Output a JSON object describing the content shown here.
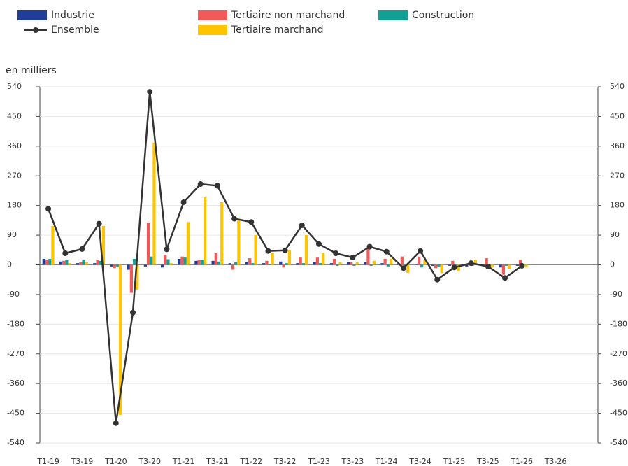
{
  "chart_data": {
    "type": "bar",
    "y_axis_label": "en milliers",
    "categories": [
      "T1-19",
      null,
      "T3-19",
      null,
      "T1-20",
      null,
      "T3-20",
      null,
      "T1-21",
      null,
      "T3-21",
      null,
      "T1-22",
      null,
      "T3-22",
      null,
      "T1-23",
      null,
      "T3-23",
      null,
      "T1-24",
      null,
      "T3-24",
      null,
      "T1-25",
      null,
      "T3-25",
      null,
      "T1-26",
      null,
      "T3-26",
      null,
      null
    ],
    "series": [
      {
        "name": "Industrie",
        "color": "#1f3d99",
        "type": "bar",
        "values": [
          18,
          10,
          5,
          5,
          -5,
          -15,
          -5,
          -8,
          18,
          12,
          12,
          5,
          8,
          5,
          10,
          5,
          8,
          5,
          8,
          8,
          5,
          3,
          3,
          -3,
          -3,
          -5,
          -3,
          -8,
          -3,
          null,
          null,
          null,
          null
        ]
      },
      {
        "name": "Tertiaire non marchand",
        "color": "#f25a5a",
        "type": "bar",
        "values": [
          15,
          12,
          8,
          15,
          -10,
          -85,
          128,
          30,
          25,
          15,
          35,
          -15,
          20,
          12,
          -8,
          22,
          22,
          18,
          8,
          50,
          18,
          25,
          25,
          -10,
          12,
          8,
          20,
          -30,
          15,
          null,
          null,
          null,
          null
        ]
      },
      {
        "name": "Construction",
        "color": "#12a095",
        "type": "bar",
        "values": [
          18,
          14,
          14,
          12,
          -5,
          18,
          25,
          17,
          22,
          15,
          10,
          8,
          5,
          3,
          5,
          5,
          5,
          -3,
          -3,
          -3,
          -5,
          -5,
          -8,
          -5,
          -5,
          -3,
          -3,
          -3,
          -3,
          null,
          null,
          null,
          null
        ]
      },
      {
        "name": "Tertiaire marchand",
        "color": "#ffc400",
        "type": "bar",
        "values": [
          118,
          5,
          8,
          118,
          -455,
          -75,
          370,
          5,
          130,
          205,
          190,
          140,
          90,
          35,
          45,
          90,
          35,
          8,
          8,
          12,
          18,
          -25,
          15,
          -25,
          -18,
          15,
          -8,
          -12,
          -8,
          null,
          null,
          null,
          null
        ]
      },
      {
        "name": "Ensemble",
        "color": "#333333",
        "type": "line",
        "values": [
          170,
          35,
          48,
          125,
          -480,
          -145,
          525,
          47,
          190,
          245,
          240,
          140,
          130,
          42,
          44,
          120,
          63,
          35,
          22,
          55,
          40,
          -10,
          42,
          -45,
          -8,
          5,
          -5,
          -40,
          -3,
          null,
          null,
          null,
          null
        ]
      }
    ],
    "ylim": [
      -540,
      540
    ],
    "yticks": [
      -540,
      -450,
      -360,
      -270,
      -180,
      -90,
      0,
      90,
      180,
      270,
      360,
      450,
      540
    ],
    "y2lim": [
      -540,
      540
    ],
    "y2ticks": [
      -540,
      -450,
      -360,
      -270,
      -180,
      -90,
      0,
      90,
      180,
      270,
      360,
      450,
      540
    ]
  }
}
